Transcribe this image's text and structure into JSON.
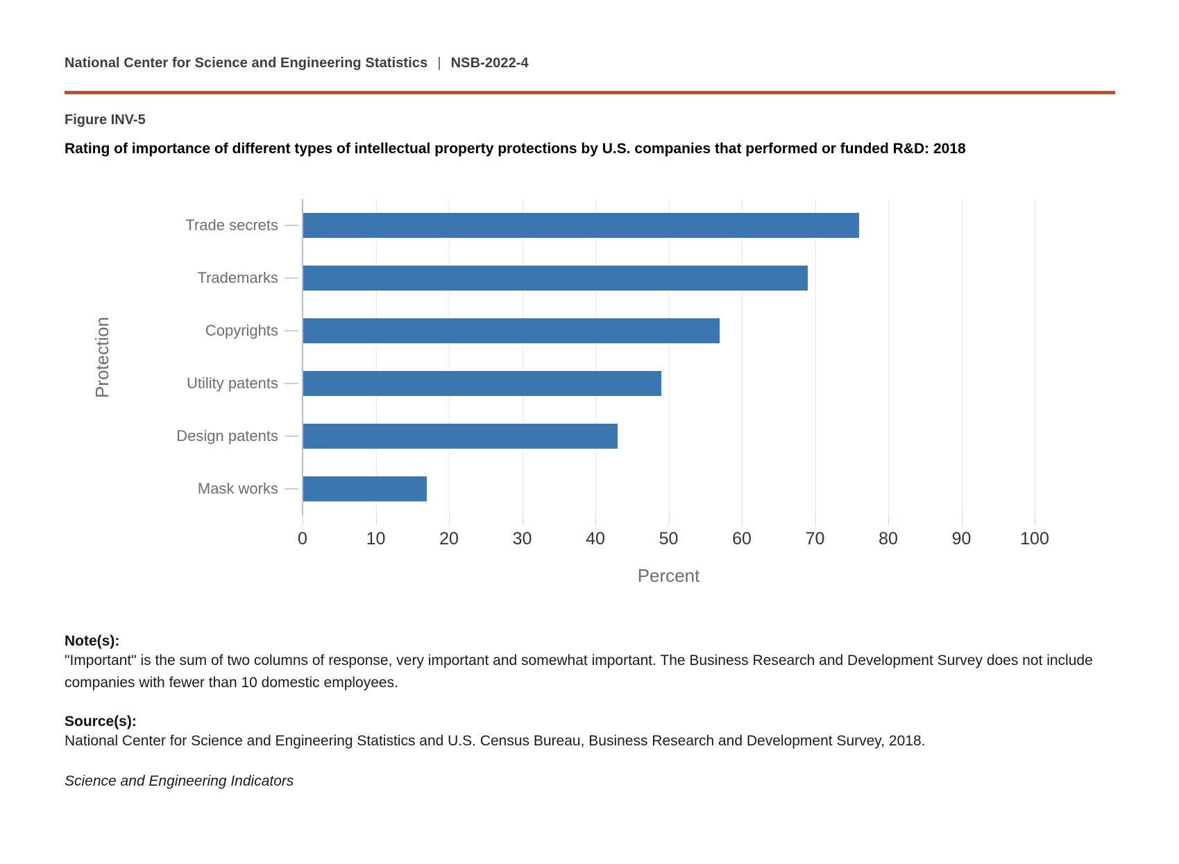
{
  "header": {
    "org": "National Center for Science and Engineering Statistics",
    "separator": "|",
    "report_code": "NSB-2022-4"
  },
  "figure": {
    "label": "Figure INV-5",
    "title": "Rating of importance of different types of intellectual property protections by U.S. companies that performed or funded R&D: 2018"
  },
  "chart_data": {
    "type": "bar",
    "orientation": "horizontal",
    "categories": [
      "Trade secrets",
      "Trademarks",
      "Copyrights",
      "Utility patents",
      "Design patents",
      "Mask works"
    ],
    "values": [
      76,
      69,
      57,
      49,
      43,
      17
    ],
    "title": "",
    "xlabel": "Percent",
    "ylabel": "Protection",
    "xlim": [
      0,
      105
    ],
    "xticks": [
      0,
      10,
      20,
      30,
      40,
      50,
      60,
      70,
      80,
      90,
      100
    ],
    "grid": true,
    "legend": "none",
    "bar_color": "#3c76b0"
  },
  "notes": {
    "heading": "Note(s):",
    "text": "\"Important\" is the sum of two columns of response, very important and somewhat important. The Business Research and Development Survey does not include companies with fewer than 10 domestic employees."
  },
  "sources": {
    "heading": "Source(s):",
    "text": "National Center for Science and Engineering Statistics and U.S. Census Bureau, Business Research and Development Survey, 2018."
  },
  "footer": {
    "publication": "Science and Engineering Indicators"
  },
  "colors": {
    "accent_rule": "#bf4e2c",
    "bar": "#3c76b0",
    "axis_line": "#b0bfd7",
    "gridline": "#e8e8e8",
    "muted_text": "#6d6d6d",
    "tick_text": "#333333"
  }
}
